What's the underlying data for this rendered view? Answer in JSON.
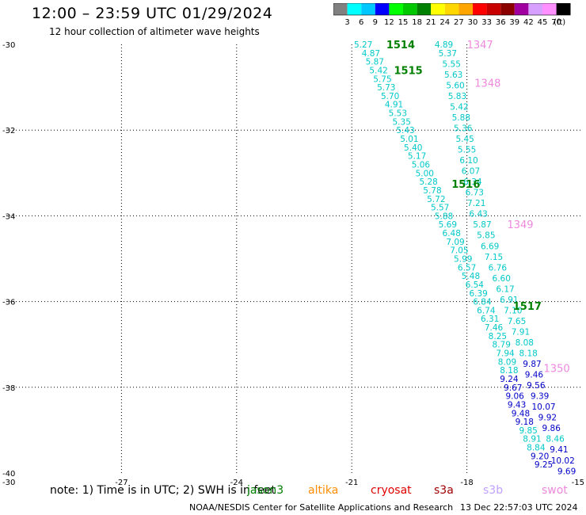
{
  "title": "12:00 – 23:59 UTC 01/29/2024",
  "subtitle": "12 hour collection of altimeter wave heights",
  "color_scale": {
    "unit": "(ft)",
    "labels": [
      "3",
      "6",
      "9",
      "12",
      "15",
      "18",
      "21",
      "24",
      "27",
      "30",
      "33",
      "36",
      "39",
      "42",
      "45",
      "70"
    ],
    "colors": [
      "#808080",
      "#00ffff",
      "#00c8ff",
      "#0000ff",
      "#00ff00",
      "#00c800",
      "#008000",
      "#ffff00",
      "#ffd700",
      "#ffa500",
      "#ff0000",
      "#c80000",
      "#8b0000",
      "#a000a0",
      "#d7a0ff",
      "#ff90ff",
      "#000000"
    ]
  },
  "chart_data": {
    "type": "scatter",
    "title": "12:00 – 23:59 UTC 01/29/2024",
    "subtitle": "12 hour collection of altimeter wave heights",
    "xlim": [
      -30,
      -15
    ],
    "ylim": [
      -40,
      -30
    ],
    "grid": true,
    "x_ticks": [
      "-30",
      "-27",
      "-24",
      "-21",
      "-18",
      "-15"
    ],
    "y_ticks": [
      "-30",
      "-32",
      "-34",
      "-36",
      "-38",
      "-40"
    ],
    "tracks": [
      {
        "satellite": "jason3",
        "color": "#00aa00",
        "label_color": "#008000",
        "labels": [
          {
            "text": "1514",
            "lon": -20.1,
            "lat": -30.0
          },
          {
            "text": "1515",
            "lon": -19.9,
            "lat": -30.6
          },
          {
            "text": "1516",
            "lon": -18.4,
            "lat": -33.25
          },
          {
            "text": "1517",
            "lon": -16.8,
            "lat": -36.1
          }
        ]
      },
      {
        "satellite": "swot",
        "label_color": "#ee88dd",
        "labels": [
          {
            "text": "1347",
            "lon": -18.0,
            "lat": -30.0
          },
          {
            "text": "1348",
            "lon": -17.8,
            "lat": -30.9
          },
          {
            "text": "1349",
            "lon": -16.95,
            "lat": -34.2
          },
          {
            "text": "1350",
            "lon": -16.0,
            "lat": -37.55
          }
        ]
      }
    ],
    "series": [
      {
        "values": [
          {
            "x": -20.7,
            "y": -30.0,
            "v": "5.27",
            "c": "#00c8c8"
          },
          {
            "x": -20.5,
            "y": -30.2,
            "v": "4.87",
            "c": "#00c8c8"
          },
          {
            "x": -20.4,
            "y": -30.4,
            "v": "5.87",
            "c": "#00c8c8"
          },
          {
            "x": -20.3,
            "y": -30.6,
            "v": "5.42",
            "c": "#00c8c8"
          },
          {
            "x": -20.2,
            "y": -30.8,
            "v": "5.75",
            "c": "#00c8c8"
          },
          {
            "x": -20.1,
            "y": -31.0,
            "v": "5.73",
            "c": "#00c8c8"
          },
          {
            "x": -20.0,
            "y": -31.2,
            "v": "5.70",
            "c": "#00c8c8"
          },
          {
            "x": -19.9,
            "y": -31.4,
            "v": "4.91",
            "c": "#00c8c8"
          },
          {
            "x": -19.8,
            "y": -31.6,
            "v": "5.53",
            "c": "#00c8c8"
          },
          {
            "x": -19.7,
            "y": -31.8,
            "v": "5.35",
            "c": "#00c8c8"
          },
          {
            "x": -19.6,
            "y": -32.0,
            "v": "5.43",
            "c": "#00c8c8"
          },
          {
            "x": -19.5,
            "y": -32.2,
            "v": "5.01",
            "c": "#00c8c8"
          },
          {
            "x": -19.4,
            "y": -32.4,
            "v": "5.40",
            "c": "#00c8c8"
          },
          {
            "x": -19.3,
            "y": -32.6,
            "v": "5.17",
            "c": "#00c8c8"
          },
          {
            "x": -19.2,
            "y": -32.8,
            "v": "5.06",
            "c": "#00c8c8"
          },
          {
            "x": -19.1,
            "y": -33.0,
            "v": "5.00",
            "c": "#00c8c8"
          },
          {
            "x": -19.0,
            "y": -33.2,
            "v": "5.28",
            "c": "#00c8c8"
          },
          {
            "x": -18.9,
            "y": -33.4,
            "v": "5.78",
            "c": "#00c8c8"
          },
          {
            "x": -18.8,
            "y": -33.6,
            "v": "5.72",
            "c": "#00c8c8"
          },
          {
            "x": -18.7,
            "y": -33.8,
            "v": "5.57",
            "c": "#00c8c8"
          },
          {
            "x": -18.6,
            "y": -34.0,
            "v": "5.88",
            "c": "#00c8c8"
          },
          {
            "x": -18.5,
            "y": -34.2,
            "v": "5.69",
            "c": "#00c8c8"
          },
          {
            "x": -18.4,
            "y": -34.4,
            "v": "6.48",
            "c": "#00c8c8"
          },
          {
            "x": -18.3,
            "y": -34.6,
            "v": "7.09",
            "c": "#00c8c8"
          },
          {
            "x": -18.2,
            "y": -34.8,
            "v": "7.05",
            "c": "#00c8c8"
          },
          {
            "x": -18.1,
            "y": -35.0,
            "v": "5.99",
            "c": "#00c8c8"
          },
          {
            "x": -18.0,
            "y": -35.2,
            "v": "6.57",
            "c": "#00c8c8"
          },
          {
            "x": -17.9,
            "y": -35.4,
            "v": "5.48",
            "c": "#00c8c8"
          },
          {
            "x": -17.8,
            "y": -35.6,
            "v": "6.54",
            "c": "#00c8c8"
          },
          {
            "x": -17.7,
            "y": -35.8,
            "v": "6.39",
            "c": "#00c8c8"
          },
          {
            "x": -17.6,
            "y": -36.0,
            "v": "6.84",
            "c": "#00c8c8"
          },
          {
            "x": -17.5,
            "y": -36.2,
            "v": "6.74",
            "c": "#00c8c8"
          },
          {
            "x": -17.4,
            "y": -36.4,
            "v": "6.31",
            "c": "#00c8c8"
          },
          {
            "x": -17.3,
            "y": -36.6,
            "v": "7.46",
            "c": "#00c8c8"
          },
          {
            "x": -17.2,
            "y": -36.8,
            "v": "8.25",
            "c": "#00c8c8"
          },
          {
            "x": -17.1,
            "y": -37.0,
            "v": "8.79",
            "c": "#00c8c8"
          },
          {
            "x": -17.0,
            "y": -37.2,
            "v": "7.94",
            "c": "#00c8c8"
          },
          {
            "x": -16.95,
            "y": -37.4,
            "v": "8.09",
            "c": "#00c8c8"
          },
          {
            "x": -16.9,
            "y": -37.6,
            "v": "8.18",
            "c": "#00c8c8"
          },
          {
            "x": -16.9,
            "y": -37.8,
            "v": "9.24",
            "c": "#0000c8"
          },
          {
            "x": -16.8,
            "y": -38.0,
            "v": "9.67",
            "c": "#0000c8"
          },
          {
            "x": -16.75,
            "y": -38.2,
            "v": "9.06",
            "c": "#0000c8"
          },
          {
            "x": -16.7,
            "y": -38.4,
            "v": "9.43",
            "c": "#0000c8"
          },
          {
            "x": -16.6,
            "y": -38.6,
            "v": "9.48",
            "c": "#0000c8"
          },
          {
            "x": -16.5,
            "y": -38.8,
            "v": "9.18",
            "c": "#0000c8"
          },
          {
            "x": -16.4,
            "y": -39.0,
            "v": "9.85",
            "c": "#00c8c8"
          },
          {
            "x": -16.3,
            "y": -39.2,
            "v": "8.91",
            "c": "#00c8c8"
          },
          {
            "x": -16.2,
            "y": -39.4,
            "v": "8.84",
            "c": "#00c8c8"
          },
          {
            "x": -16.1,
            "y": -39.6,
            "v": "9.20",
            "c": "#0000c8"
          },
          {
            "x": -16.0,
            "y": -39.8,
            "v": "9.25",
            "c": "#0000c8"
          }
        ]
      },
      {
        "values": [
          {
            "x": -18.6,
            "y": -30.0,
            "v": "4.89",
            "c": "#00c8c8"
          },
          {
            "x": -18.5,
            "y": -30.2,
            "v": "5.37",
            "c": "#00c8c8"
          },
          {
            "x": -18.4,
            "y": -30.45,
            "v": "5.55",
            "c": "#00c8c8"
          },
          {
            "x": -18.35,
            "y": -30.7,
            "v": "5.63",
            "c": "#00c8c8"
          },
          {
            "x": -18.3,
            "y": -30.95,
            "v": "5.60",
            "c": "#00c8c8"
          },
          {
            "x": -18.25,
            "y": -31.2,
            "v": "5.83",
            "c": "#00c8c8"
          },
          {
            "x": -18.2,
            "y": -31.45,
            "v": "5.42",
            "c": "#00c8c8"
          },
          {
            "x": -18.15,
            "y": -31.7,
            "v": "5.88",
            "c": "#00c8c8"
          },
          {
            "x": -18.1,
            "y": -31.95,
            "v": "5.36",
            "c": "#00c8c8"
          },
          {
            "x": -18.05,
            "y": -32.2,
            "v": "5.45",
            "c": "#00c8c8"
          },
          {
            "x": -18.0,
            "y": -32.45,
            "v": "5.55",
            "c": "#00c8c8"
          },
          {
            "x": -17.95,
            "y": -32.7,
            "v": "6.10",
            "c": "#00c8c8"
          },
          {
            "x": -17.9,
            "y": -32.95,
            "v": "6.07",
            "c": "#00c8c8"
          },
          {
            "x": -17.85,
            "y": -33.2,
            "v": "6.34",
            "c": "#00c8c8"
          },
          {
            "x": -17.8,
            "y": -33.45,
            "v": "6.73",
            "c": "#00c8c8"
          },
          {
            "x": -17.75,
            "y": -33.7,
            "v": "7.21",
            "c": "#00c8c8"
          },
          {
            "x": -17.7,
            "y": -33.95,
            "v": "6.43",
            "c": "#00c8c8"
          },
          {
            "x": -17.6,
            "y": -34.2,
            "v": "5.87",
            "c": "#00c8c8"
          },
          {
            "x": -17.5,
            "y": -34.45,
            "v": "5.85",
            "c": "#00c8c8"
          },
          {
            "x": -17.4,
            "y": -34.7,
            "v": "6.69",
            "c": "#00c8c8"
          },
          {
            "x": -17.3,
            "y": -34.95,
            "v": "7.15",
            "c": "#00c8c8"
          },
          {
            "x": -17.2,
            "y": -35.2,
            "v": "6.76",
            "c": "#00c8c8"
          },
          {
            "x": -17.1,
            "y": -35.45,
            "v": "6.60",
            "c": "#00c8c8"
          },
          {
            "x": -17.0,
            "y": -35.7,
            "v": "6.17",
            "c": "#00c8c8"
          },
          {
            "x": -16.9,
            "y": -35.95,
            "v": "6.91",
            "c": "#00c8c8"
          },
          {
            "x": -16.8,
            "y": -36.2,
            "v": "7.10",
            "c": "#00c8c8"
          },
          {
            "x": -16.7,
            "y": -36.45,
            "v": "7.65",
            "c": "#00c8c8"
          },
          {
            "x": -16.6,
            "y": -36.7,
            "v": "7.91",
            "c": "#00c8c8"
          },
          {
            "x": -16.5,
            "y": -36.95,
            "v": "8.08",
            "c": "#00c8c8"
          },
          {
            "x": -16.4,
            "y": -37.2,
            "v": "8.18",
            "c": "#00c8c8"
          },
          {
            "x": -16.3,
            "y": -37.45,
            "v": "9.87",
            "c": "#0000c8"
          },
          {
            "x": -16.25,
            "y": -37.7,
            "v": "9.46",
            "c": "#0000c8"
          },
          {
            "x": -16.2,
            "y": -37.95,
            "v": "9.56",
            "c": "#0000c8"
          },
          {
            "x": -16.1,
            "y": -38.2,
            "v": "9.39",
            "c": "#0000c8"
          },
          {
            "x": -16.0,
            "y": -38.45,
            "v": "10.07",
            "c": "#0000c8"
          },
          {
            "x": -15.9,
            "y": -38.7,
            "v": "9.92",
            "c": "#0000c8"
          },
          {
            "x": -15.8,
            "y": -38.95,
            "v": "9.86",
            "c": "#0000c8"
          },
          {
            "x": -15.7,
            "y": -39.2,
            "v": "8.46",
            "c": "#00c8c8"
          },
          {
            "x": -15.6,
            "y": -39.45,
            "v": "9.41",
            "c": "#0000c8"
          },
          {
            "x": -15.5,
            "y": -39.7,
            "v": "10.02",
            "c": "#0000c8"
          },
          {
            "x": -15.4,
            "y": -39.95,
            "v": "9.69",
            "c": "#0000c8"
          }
        ]
      }
    ]
  },
  "note": "note:  1) Time is in UTC; 2) SWH is in feet",
  "satellites": [
    {
      "name": "jason3",
      "color": "#008000"
    },
    {
      "name": "altika",
      "color": "#ff8c00"
    },
    {
      "name": "cryosat",
      "color": "#e00000"
    },
    {
      "name": "s3a",
      "color": "#a00000"
    },
    {
      "name": "s3b",
      "color": "#c0a0ff"
    },
    {
      "name": "swot",
      "color": "#ee88dd"
    }
  ],
  "credit": "NOAA/NESDIS Center for Satellite Applications and Research",
  "timestamp": "13 Dec 22:57:03 UTC 2024"
}
